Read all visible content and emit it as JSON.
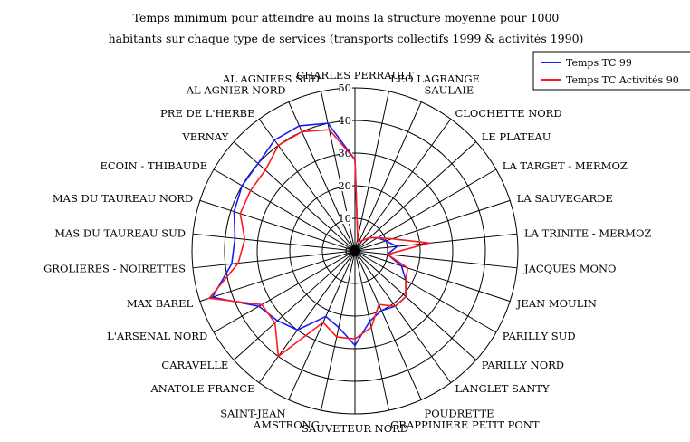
{
  "chart_data": {
    "type": "radar",
    "title_lines": [
      "Temps minimum pour atteindre au moins la structure moyenne pour 1000",
      "habitants sur chaque type de services (transports collectifs 1999 & activités 1990)"
    ],
    "rlim": [
      0,
      50
    ],
    "r_ticks": [
      0,
      10,
      20,
      30,
      40,
      50
    ],
    "grid": true,
    "legend_position": "top-right",
    "categories": [
      "CHARLES PERRAULT",
      "LEO LAGRANGE",
      "SAULAIE",
      "CLOCHETTE NORD",
      "LE PLATEAU",
      "LA TARGET - MERMOZ",
      "LA SAUVEGARDE",
      "LA TRINITE - MERMOZ",
      "JACQUES MONO",
      "JEAN MOULIN",
      "PARILLY SUD",
      "PARILLY NORD",
      "LANGLET SANTY",
      "POUDRETTE",
      "GRAPPINIERE PETIT PONT",
      "SAUVETEUR NORD",
      "AMSTRONG",
      "SAINT-JEAN",
      "ANATOLE FRANCE",
      "CARAVELLE",
      "L'ARSENAL NORD",
      "MAX BAREL",
      "GROLIERES - NOIRETTES",
      "MAS DU TAUREAU SUD",
      "MAS DU TAUREAU NORD",
      "ECOIN - THIBAUDE",
      "VERNAY",
      "PRE DE L'HERBE",
      "AL AGNIER NORD",
      "AL AGNIERS SUD"
    ],
    "series": [
      {
        "name": "Temps TC 99",
        "color": "#1a1aff",
        "values": [
          28,
          4,
          3,
          4,
          6,
          8,
          10,
          13,
          10,
          15,
          18,
          21,
          21,
          20,
          22,
          29,
          24,
          22,
          30,
          32,
          34,
          46,
          38,
          37,
          39,
          40,
          40,
          42,
          42,
          40
        ]
      },
      {
        "name": "Temps TC Activités 90",
        "color": "#ff1a1a",
        "values": [
          28,
          4,
          3,
          4,
          6,
          8,
          12,
          23,
          10,
          17,
          18,
          21,
          21,
          18,
          24,
          27,
          27,
          24,
          40,
          33,
          33,
          47,
          36,
          34,
          37,
          37,
          37,
          40,
          40,
          38
        ]
      }
    ]
  },
  "legend": {
    "items": [
      {
        "label": "Temps TC 99",
        "color": "#1a1aff"
      },
      {
        "label": "Temps TC Activités 90",
        "color": "#ff1a1a"
      }
    ]
  }
}
